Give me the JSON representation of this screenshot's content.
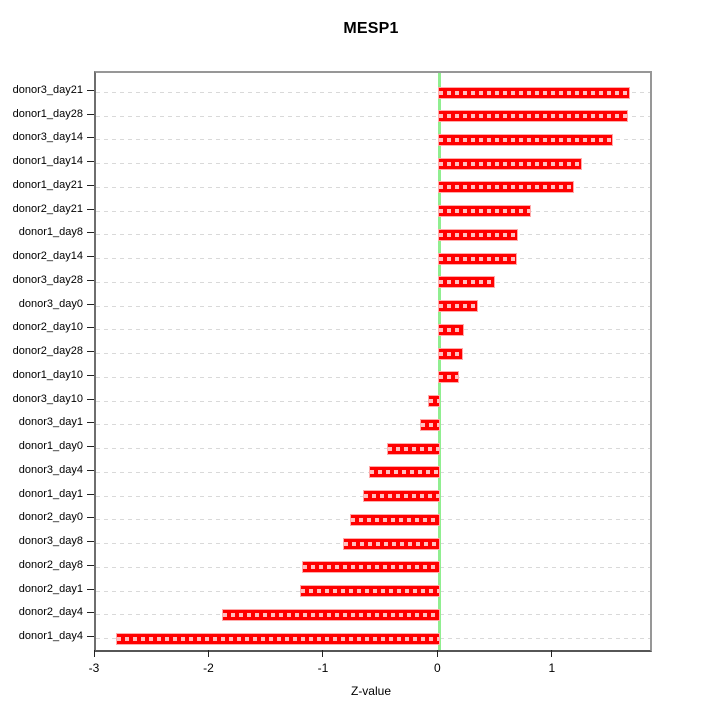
{
  "title": "MESP1",
  "chart_data": {
    "type": "bar",
    "orientation": "horizontal",
    "title": "MESP1",
    "xlabel": "Z-value",
    "ylabel": "",
    "categories": [
      "donor3_day21",
      "donor1_day28",
      "donor3_day14",
      "donor1_day14",
      "donor1_day21",
      "donor2_day21",
      "donor1_day8",
      "donor2_day14",
      "donor3_day28",
      "donor3_day0",
      "donor2_day10",
      "donor2_day28",
      "donor1_day10",
      "donor3_day10",
      "donor3_day1",
      "donor1_day0",
      "donor3_day4",
      "donor1_day1",
      "donor2_day0",
      "donor3_day8",
      "donor2_day8",
      "donor2_day1",
      "donor2_day4",
      "donor1_day4"
    ],
    "values": [
      1.66,
      1.64,
      1.51,
      1.24,
      1.17,
      0.79,
      0.68,
      0.67,
      0.48,
      0.33,
      0.21,
      0.2,
      0.16,
      -0.09,
      -0.16,
      -0.45,
      -0.61,
      -0.66,
      -0.77,
      -0.83,
      -1.19,
      -1.21,
      -1.89,
      -2.82
    ],
    "xlim": [
      -3.0,
      1.84
    ],
    "x_ticks": [
      "-3",
      "-2",
      "-1",
      "0",
      "1"
    ],
    "x_tick_values": [
      -3,
      -2,
      -1,
      0,
      1
    ],
    "grid": true,
    "legend": "none",
    "bar_color": "#ff0000",
    "bar_edge_color": "#ffaaaa",
    "bar_inner_dash_color": "rgba(255,255,255,0.75)",
    "zero_line_color": "#90ee90",
    "grid_color": "#d9d9d9",
    "box_color": "#979797"
  }
}
